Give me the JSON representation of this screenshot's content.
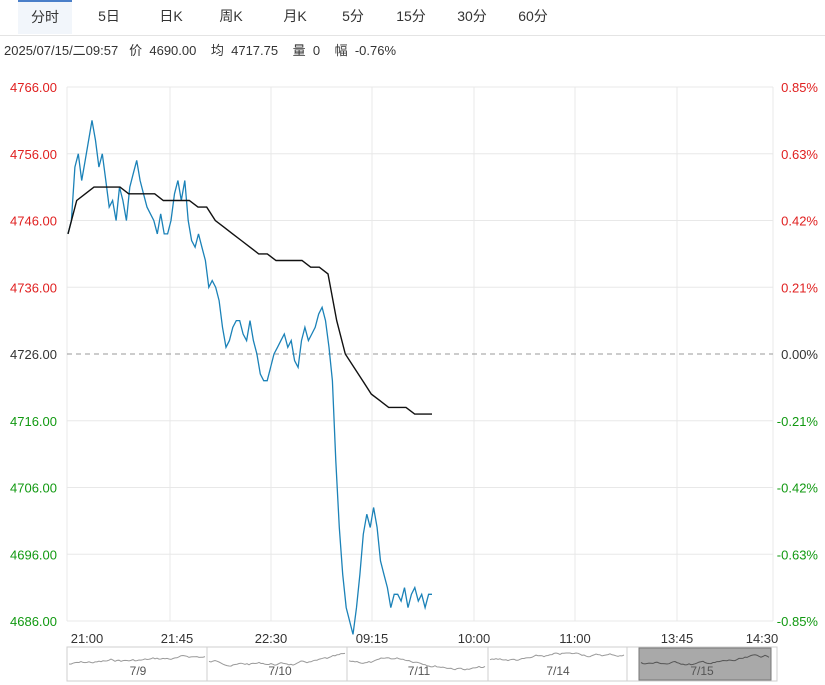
{
  "tabs": [
    "分时",
    "5日",
    "日K",
    "周K",
    "月K",
    "5分",
    "15分",
    "30分",
    "60分"
  ],
  "active_tab": "分时",
  "info": {
    "datetime": "2025/07/15/二09:57",
    "price_label": "价",
    "price_value": "4690.00",
    "avg_label": "均",
    "avg_value": "4717.75",
    "vol_label": "量",
    "vol_value": "0",
    "range_label": "幅",
    "range_value": "-0.76%"
  },
  "colors": {
    "up": "#e02020",
    "down": "#119911",
    "price_line": "#1b82b8",
    "avg_line": "#111111",
    "grid": "#e8e8e8",
    "baseline": "#999999"
  },
  "chart_data": {
    "type": "line",
    "ylim": [
      4686,
      4766
    ],
    "baseline": 4726,
    "y_ticks": [
      "4766.00",
      "4756.00",
      "4746.00",
      "4736.00",
      "4726.00",
      "4716.00",
      "4706.00",
      "4696.00",
      "4686.00"
    ],
    "pct_ticks": [
      "0.85%",
      "0.63%",
      "0.42%",
      "0.21%",
      "0.00%",
      "-0.21%",
      "-0.42%",
      "-0.63%",
      "-0.85%"
    ],
    "x_ticks": [
      "21:00",
      "21:45",
      "22:30",
      "09:15",
      "10:00",
      "11:00",
      "13:45",
      "14:30"
    ],
    "series": [
      {
        "name": "价",
        "values": [
          4744,
          4746,
          4754,
          4756,
          4752,
          4755,
          4758,
          4761,
          4758,
          4754,
          4756,
          4752,
          4748,
          4749,
          4746,
          4751,
          4749,
          4746,
          4751,
          4753,
          4755,
          4752,
          4750,
          4748,
          4747,
          4746,
          4744,
          4747,
          4744,
          4744,
          4746,
          4750,
          4752,
          4749,
          4752,
          4746,
          4743,
          4742,
          4744,
          4742,
          4740,
          4736,
          4737,
          4736,
          4734,
          4730,
          4727,
          4728,
          4730,
          4731,
          4731,
          4729,
          4728,
          4731,
          4728,
          4726,
          4723,
          4722,
          4722,
          4724,
          4726,
          4727,
          4728,
          4729,
          4727,
          4728,
          4725,
          4724,
          4728,
          4730,
          4728,
          4729,
          4730,
          4732,
          4733,
          4731,
          4727,
          4722,
          4710,
          4700,
          4693,
          4688,
          4686,
          4684,
          4688,
          4693,
          4699,
          4702,
          4700,
          4703,
          4700,
          4695,
          4693,
          4691,
          4688,
          4690,
          4690,
          4689,
          4691,
          4688,
          4690,
          4691,
          4689,
          4690,
          4688,
          4690,
          4690
        ],
        "note_x_range": [
          "21:00",
          "09:57"
        ]
      },
      {
        "name": "均",
        "values": [
          4744,
          4749,
          4750,
          4751,
          4751,
          4751,
          4751,
          4750,
          4750,
          4750,
          4750,
          4749,
          4749,
          4749,
          4749,
          4748,
          4748,
          4746,
          4745,
          4744,
          4743,
          4742,
          4741,
          4741,
          4740,
          4740,
          4740,
          4740,
          4739,
          4739,
          4738,
          4731,
          4726,
          4724,
          4722,
          4720,
          4719,
          4718,
          4718,
          4718,
          4717,
          4717,
          4717
        ]
      }
    ],
    "navigator_labels": [
      "7/9",
      "7/10",
      "7/11",
      "7/14",
      "7/15"
    ]
  }
}
